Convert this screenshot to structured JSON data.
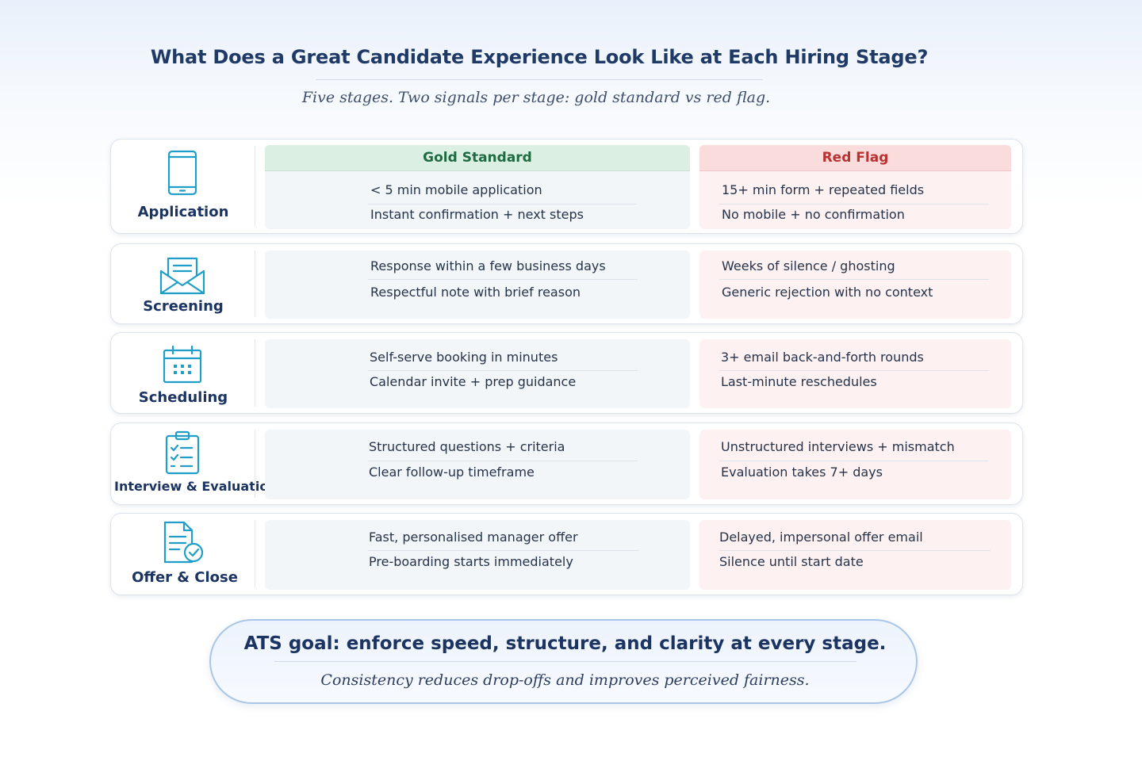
{
  "header": {
    "title": "What Does a Great Candidate Experience Look Like at Each Hiring Stage?",
    "subtitle": "Five stages. Two signals per stage: gold standard vs red flag."
  },
  "columns": {
    "gold": "Gold Standard",
    "red": "Red Flag"
  },
  "stages": [
    {
      "name": "Application",
      "icon": "mobile-phone-icon",
      "gold": [
        "< 5 min mobile application",
        "Instant confirmation + next steps"
      ],
      "red": [
        "15+ min form + repeated fields",
        "No mobile + no confirmation"
      ]
    },
    {
      "name": "Screening",
      "icon": "envelope-icon",
      "gold": [
        "Response within a few business days",
        "Respectful note with brief reason"
      ],
      "red": [
        "Weeks of silence / ghosting",
        "Generic rejection with no context"
      ]
    },
    {
      "name": "Scheduling",
      "icon": "calendar-icon",
      "gold": [
        "Self-serve booking in minutes",
        "Calendar invite + prep guidance"
      ],
      "red": [
        "3+ email back-and-forth rounds",
        "Last-minute reschedules"
      ]
    },
    {
      "name": "Interview & Evaluation",
      "icon": "clipboard-checklist-icon",
      "gold": [
        "Structured questions + criteria",
        "Clear follow-up timeframe"
      ],
      "red": [
        "Unstructured interviews + mismatch",
        "Evaluation takes 7+ days"
      ]
    },
    {
      "name": "Offer & Close",
      "icon": "document-check-icon",
      "gold": [
        "Fast, personalised manager offer",
        "Pre-boarding starts immediately"
      ],
      "red": [
        "Delayed, impersonal offer email",
        "Silence until start date"
      ]
    }
  ],
  "callout": {
    "title": "ATS goal: enforce speed, structure, and clarity at every stage.",
    "subtitle": "Consistency reduces drop-offs and improves perceived fairness."
  },
  "colors": {
    "primary_text": "#1b3461",
    "icon": "#1f9ec9",
    "gold_header": "#dcefe3",
    "gold_text": "#1e6b42",
    "red_header": "#fadcdc",
    "red_text": "#b83232"
  }
}
